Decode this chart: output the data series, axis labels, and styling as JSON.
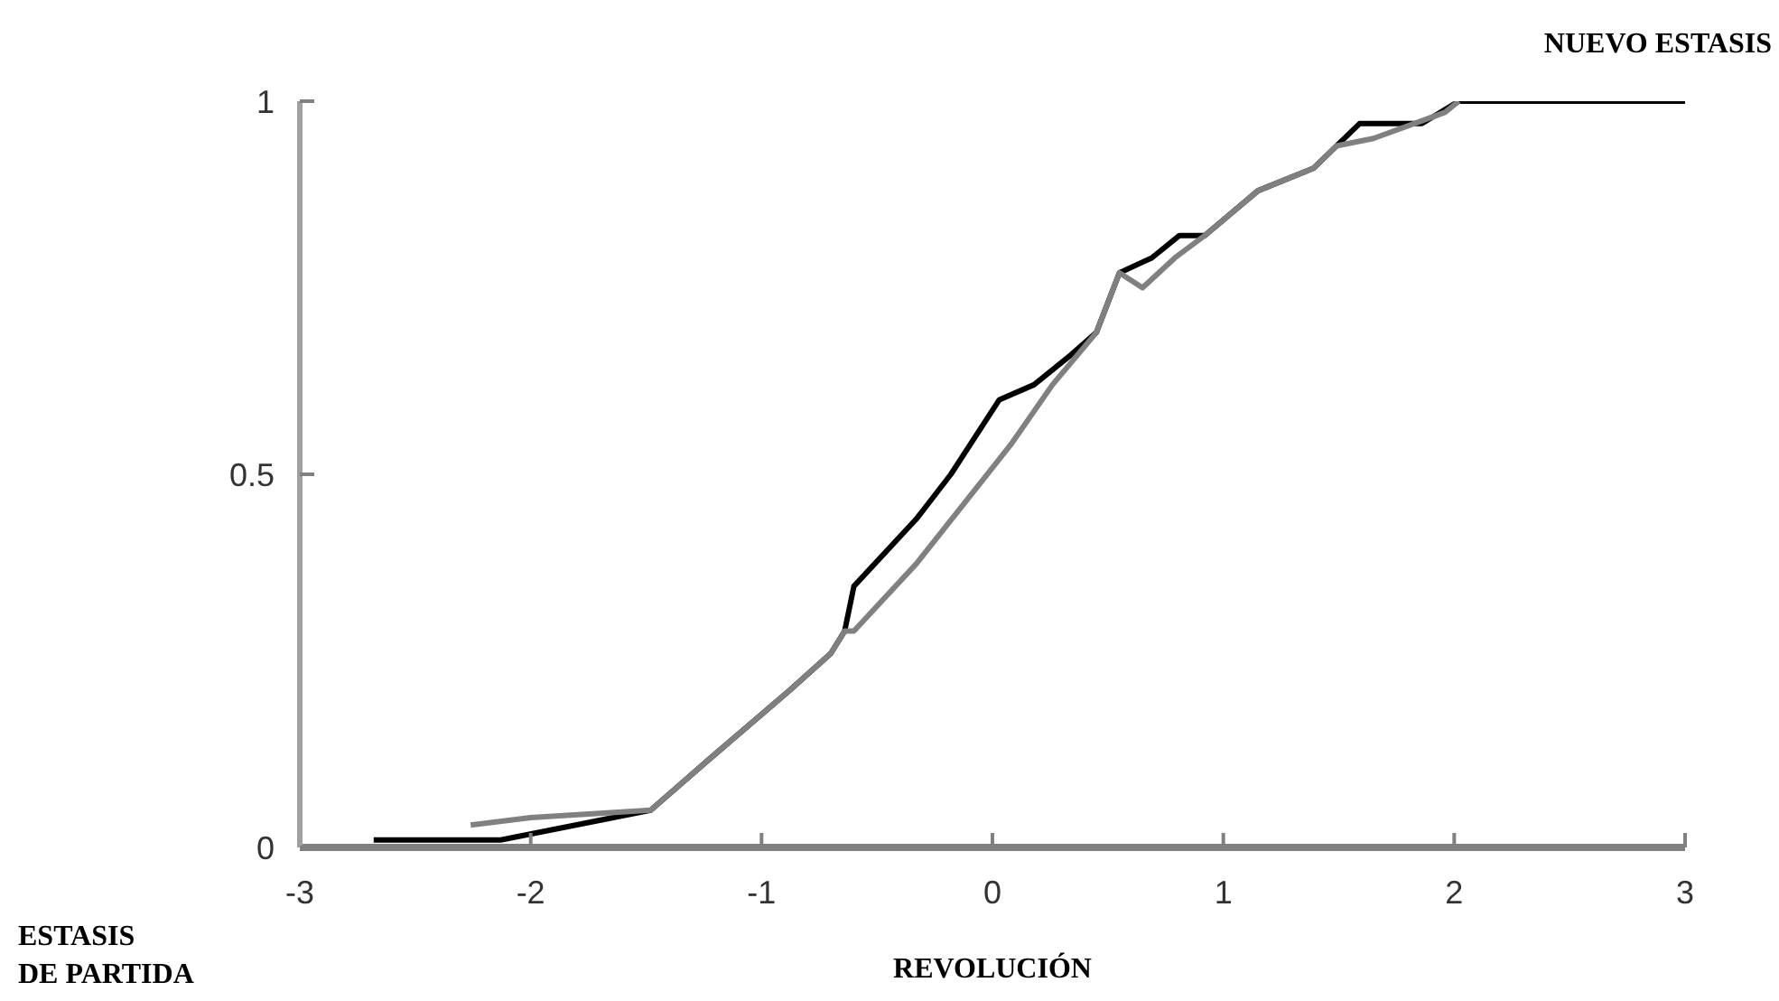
{
  "chart_data": {
    "type": "line",
    "xlabel": "REVOLUCIÓN",
    "annotations": [
      "NUEVO ESTASIS",
      "ESTASIS\nDE PARTIDA"
    ],
    "series": [
      {
        "color": "#000000",
        "x": [
          -2.68,
          -2.13,
          -1.48,
          -1.22,
          -0.88,
          -0.7,
          -0.64,
          -0.6,
          -0.33,
          -0.18,
          0.03,
          0.18,
          0.34,
          0.45,
          0.55,
          0.69,
          0.81,
          0.92,
          1.15,
          1.39,
          1.49,
          1.59,
          1.86,
          2.02,
          3
        ],
        "values": [
          0.01,
          0.01,
          0.05,
          0.12,
          0.21,
          0.26,
          0.29,
          0.35,
          0.44,
          0.5,
          0.6,
          0.62,
          0.66,
          0.69,
          0.77,
          0.79,
          0.82,
          0.82,
          0.88,
          0.91,
          0.94,
          0.97,
          0.97,
          1,
          1
        ]
      },
      {
        "color": "#808080",
        "x": [
          -2.26,
          -2.0,
          -1.48,
          -1.22,
          -0.88,
          -0.7,
          -0.64,
          -0.6,
          -0.33,
          0.08,
          0.26,
          0.45,
          0.55,
          0.65,
          0.79,
          0.92,
          1.15,
          1.39,
          1.49,
          1.65,
          1.96,
          2.02
        ],
        "values": [
          0.03,
          0.04,
          0.05,
          0.12,
          0.21,
          0.26,
          0.29,
          0.29,
          0.38,
          0.54,
          0.62,
          0.69,
          0.77,
          0.75,
          0.79,
          0.82,
          0.88,
          0.91,
          0.94,
          0.95,
          0.985,
          1
        ]
      }
    ],
    "xlim": [
      -3,
      3
    ],
    "xticks": [
      -3,
      -2,
      -1,
      0,
      1,
      2,
      3
    ],
    "ylim": [
      0,
      1
    ],
    "yticks": [
      0,
      0.5,
      1
    ],
    "grid": false,
    "marker": "none",
    "line_style": "solid"
  }
}
